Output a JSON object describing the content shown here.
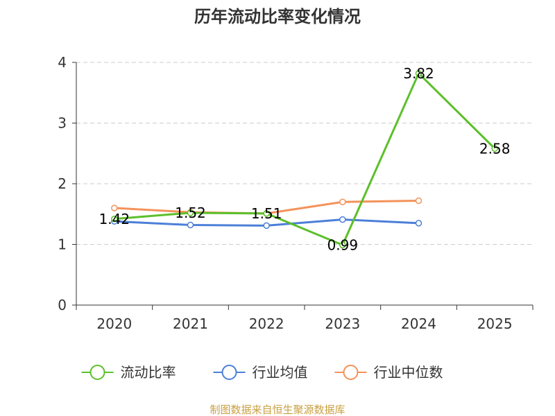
{
  "chart_data": {
    "type": "line",
    "title": "历年流动比率变化情况",
    "categories": [
      "2020",
      "2021",
      "2022",
      "2023",
      "2024",
      "2025"
    ],
    "ylim": [
      0,
      4
    ],
    "yticks": [
      0,
      1,
      2,
      3,
      4
    ],
    "grid": true,
    "legend_position": "bottom",
    "series": [
      {
        "name": "流动比率",
        "color": "#5cbf2a",
        "values": [
          1.42,
          1.52,
          1.51,
          0.99,
          3.82,
          2.58
        ],
        "labels": [
          "1.42",
          "1.52",
          "1.51",
          "0.99",
          "3.82",
          "2.58"
        ]
      },
      {
        "name": "行业均值",
        "color": "#4c7fd8",
        "values": [
          1.38,
          1.32,
          1.31,
          1.41,
          1.35,
          null
        ]
      },
      {
        "name": "行业中位数",
        "color": "#f4925a",
        "values": [
          1.6,
          1.53,
          1.51,
          1.7,
          1.72,
          null
        ]
      }
    ]
  },
  "source_text": "制图数据来自恒生聚源数据库"
}
